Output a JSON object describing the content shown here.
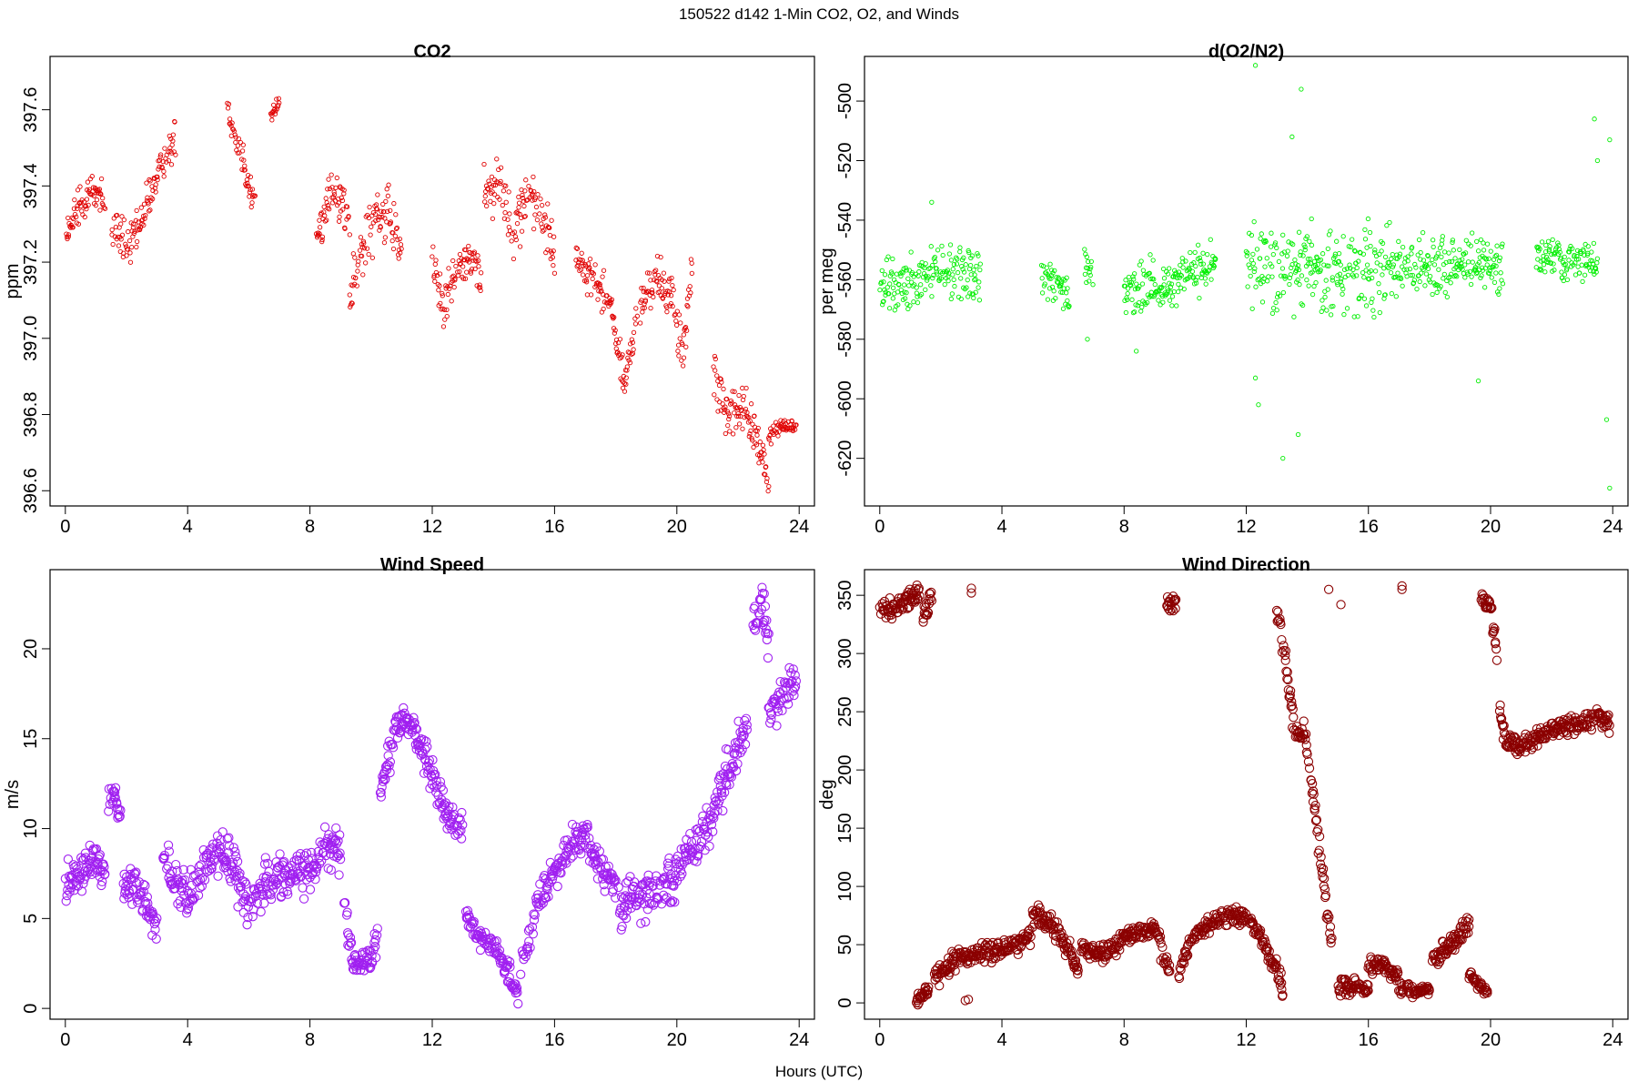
{
  "figure": {
    "title": "150522   d142   1-Min CO2, O2, and Winds",
    "xlabel": "Hours (UTC)"
  },
  "chart_data": [
    {
      "id": "co2",
      "type": "scatter",
      "title": "CO2",
      "ylabel": "ppm",
      "xlabel": "",
      "color": "#e00000",
      "xlim": [
        -0.5,
        24.5
      ],
      "ylim": [
        396.56,
        397.74
      ],
      "xticks": [
        0,
        4,
        8,
        12,
        16,
        20,
        24
      ],
      "yticks": [
        396.6,
        396.8,
        397.0,
        397.2,
        397.4,
        397.6
      ],
      "ytick_labels": [
        "396.6",
        "396.8",
        "397.0",
        "397.2",
        "397.4",
        "397.6"
      ],
      "marker_size": "small",
      "segments": [
        {
          "x": [
            0.0,
            0.5,
            1.0,
            1.3
          ],
          "y": [
            397.26,
            397.36,
            397.4,
            397.34
          ],
          "noise": 0.04
        },
        {
          "x": [
            1.5,
            2.0,
            2.5,
            3.0,
            3.6
          ],
          "y": [
            397.3,
            397.24,
            397.3,
            397.43,
            397.53
          ],
          "noise": 0.05
        },
        {
          "x": [
            5.3,
            5.6,
            5.8,
            6.0,
            6.2
          ],
          "y": [
            397.62,
            397.52,
            397.48,
            397.4,
            397.36
          ],
          "noise": 0.04
        },
        {
          "x": [
            6.7,
            7.0
          ],
          "y": [
            397.58,
            397.62
          ],
          "noise": 0.02
        },
        {
          "x": [
            8.2,
            8.6,
            9.0,
            9.3
          ],
          "y": [
            397.25,
            397.38,
            397.36,
            397.3
          ],
          "noise": 0.05
        },
        {
          "x": [
            9.3,
            9.8,
            10.2,
            10.6,
            11.0
          ],
          "y": [
            397.1,
            397.26,
            397.36,
            397.3,
            397.23
          ],
          "noise": 0.07
        },
        {
          "x": [
            12.0,
            12.4,
            12.8,
            13.2,
            13.6
          ],
          "y": [
            397.2,
            397.08,
            397.18,
            397.22,
            397.15
          ],
          "noise": 0.05
        },
        {
          "x": [
            13.7,
            14.2,
            14.6,
            15.2,
            15.8,
            16.0
          ],
          "y": [
            397.38,
            397.42,
            397.28,
            397.38,
            397.28,
            397.22
          ],
          "noise": 0.06
        },
        {
          "x": [
            16.7,
            17.2,
            17.8,
            18.3,
            18.7
          ],
          "y": [
            397.22,
            397.16,
            397.1,
            396.88,
            397.05
          ],
          "noise": 0.04
        },
        {
          "x": [
            18.8,
            19.3,
            19.8,
            20.2,
            20.5
          ],
          "y": [
            397.08,
            397.16,
            397.12,
            396.95,
            397.2
          ],
          "noise": 0.05
        },
        {
          "x": [
            21.2,
            21.7,
            22.2,
            22.7,
            23.0
          ],
          "y": [
            396.9,
            396.8,
            396.82,
            396.72,
            396.62
          ],
          "noise": 0.05
        },
        {
          "x": [
            23.0,
            23.4,
            23.9
          ],
          "y": [
            396.74,
            396.77,
            396.77
          ],
          "noise": 0.02
        }
      ]
    },
    {
      "id": "o2",
      "type": "scatter",
      "title": "d(O2/N2)",
      "ylabel": "per meg",
      "xlabel": "",
      "color": "#00ee00",
      "xlim": [
        -0.5,
        24.5
      ],
      "ylim": [
        -636,
        -485
      ],
      "xticks": [
        0,
        4,
        8,
        12,
        16,
        20,
        24
      ],
      "yticks": [
        -620,
        -600,
        -580,
        -560,
        -540,
        -520,
        -500
      ],
      "ytick_labels": [
        "-620",
        "-600",
        "-580",
        "-560",
        "-540",
        "-520",
        "-500"
      ],
      "marker_size": "small",
      "segments": [
        {
          "x": [
            0.0,
            0.5,
            1.0,
            1.5,
            2.0,
            2.5,
            3.3
          ],
          "y": [
            -563,
            -563,
            -560,
            -558,
            -556,
            -557,
            -560
          ],
          "noise": 8
        },
        {
          "x": [
            5.3,
            5.8,
            6.2
          ],
          "y": [
            -558,
            -562,
            -565
          ],
          "noise": 6
        },
        {
          "x": [
            6.7,
            7.0
          ],
          "y": [
            -558,
            -562
          ],
          "noise": 8
        },
        {
          "x": [
            8.0,
            8.6,
            9.2,
            9.8,
            10.4,
            11.0
          ],
          "y": [
            -565,
            -563,
            -562,
            -560,
            -558,
            -553
          ],
          "noise": 7
        },
        {
          "x": [
            12.0,
            12.8,
            13.6,
            14.4,
            15.2,
            16.0,
            16.8
          ],
          "y": [
            -556,
            -556,
            -557,
            -558,
            -557,
            -557,
            -556
          ],
          "noise": 12
        },
        {
          "x": [
            16.8,
            17.6,
            18.4,
            19.2,
            20.0,
            20.4
          ],
          "y": [
            -556,
            -556,
            -555,
            -554,
            -555,
            -556
          ],
          "noise": 8
        },
        {
          "x": [
            21.5,
            22.0,
            22.5,
            23.0,
            23.5
          ],
          "y": [
            -553,
            -552,
            -553,
            -552,
            -555
          ],
          "noise": 6
        }
      ],
      "outliers": [
        [
          12.3,
          -488
        ],
        [
          13.8,
          -496
        ],
        [
          13.5,
          -512
        ],
        [
          12.3,
          -593
        ],
        [
          12.4,
          -602
        ],
        [
          13.7,
          -612
        ],
        [
          13.2,
          -620
        ],
        [
          19.6,
          -594
        ],
        [
          23.8,
          -607
        ],
        [
          23.9,
          -630
        ],
        [
          23.4,
          -506
        ],
        [
          23.9,
          -513
        ],
        [
          1.7,
          -534
        ],
        [
          6.8,
          -580
        ],
        [
          8.4,
          -584
        ],
        [
          23.5,
          -520
        ]
      ]
    },
    {
      "id": "wind-speed",
      "type": "scatter",
      "title": "Wind Speed",
      "ylabel": "m/s",
      "xlabel": "",
      "color": "#a020f0",
      "xlim": [
        -0.5,
        24.5
      ],
      "ylim": [
        -0.6,
        24.4
      ],
      "xticks": [
        0,
        4,
        8,
        12,
        16,
        20,
        24
      ],
      "yticks": [
        0,
        5,
        10,
        15,
        20
      ],
      "ytick_labels": [
        "0",
        "5",
        "10",
        "15",
        "20"
      ],
      "marker_size": "large",
      "segments": [
        {
          "x": [
            0.0,
            0.5,
            1.0,
            1.3
          ],
          "y": [
            7.0,
            7.8,
            8.2,
            7.6
          ],
          "noise": 0.9
        },
        {
          "x": [
            1.4,
            1.6,
            1.8
          ],
          "y": [
            11.5,
            12.0,
            10.5
          ],
          "noise": 0.7
        },
        {
          "x": [
            1.9,
            2.5,
            3.0
          ],
          "y": [
            7.0,
            6.2,
            4.3
          ],
          "noise": 0.9
        },
        {
          "x": [
            3.2,
            3.6,
            4.0,
            4.5,
            5.0,
            5.5,
            6.0,
            6.5,
            7.0,
            7.5,
            8.0,
            8.5,
            9.0
          ],
          "y": [
            8.2,
            7.0,
            6.3,
            7.6,
            8.8,
            8.0,
            5.2,
            7.0,
            7.6,
            7.4,
            7.6,
            9.2,
            8.6
          ],
          "noise": 1.0
        },
        {
          "x": [
            9.1,
            9.4,
            9.7,
            10.0,
            10.2
          ],
          "y": [
            6.0,
            2.5,
            2.4,
            3.0,
            3.8
          ],
          "noise": 0.6
        },
        {
          "x": [
            10.3,
            10.8,
            11.2,
            11.8,
            12.5,
            13.0
          ],
          "y": [
            12.0,
            15.5,
            16.2,
            13.8,
            10.8,
            10.0
          ],
          "noise": 0.8
        },
        {
          "x": [
            13.1,
            13.5,
            14.0,
            14.5,
            14.8
          ],
          "y": [
            5.2,
            4.0,
            3.5,
            2.0,
            0.7
          ],
          "noise": 0.5
        },
        {
          "x": [
            14.9,
            15.5,
            16.0,
            16.5,
            17.0,
            17.5,
            18.0
          ],
          "y": [
            2.5,
            6.2,
            7.5,
            9.0,
            9.6,
            7.8,
            6.8
          ],
          "noise": 0.8
        },
        {
          "x": [
            18.1,
            18.6,
            19.2,
            19.8,
            20.3,
            20.8,
            21.3,
            21.8,
            22.3
          ],
          "y": [
            5.3,
            6.3,
            6.4,
            6.8,
            8.5,
            9.5,
            11.5,
            13.5,
            15.5
          ],
          "noise": 1.1
        },
        {
          "x": [
            22.5,
            22.8,
            23.0
          ],
          "y": [
            21.5,
            22.5,
            20.5
          ],
          "noise": 1.0
        },
        {
          "x": [
            23.0,
            23.5,
            23.9
          ],
          "y": [
            16.2,
            17.6,
            18.0
          ],
          "noise": 1.1
        }
      ]
    },
    {
      "id": "wind-direction",
      "type": "scatter",
      "title": "Wind Direction",
      "ylabel": "deg",
      "xlabel": "",
      "color": "#8b0000",
      "xlim": [
        -0.5,
        24.5
      ],
      "ylim": [
        -14,
        372
      ],
      "xticks": [
        0,
        4,
        8,
        12,
        16,
        20,
        24
      ],
      "yticks": [
        0,
        50,
        100,
        150,
        200,
        250,
        300,
        350
      ],
      "ytick_labels": [
        "0",
        "50",
        "100",
        "150",
        "200",
        "250",
        "300",
        "350"
      ],
      "marker_size": "large",
      "segments": [
        {
          "x": [
            0.0,
            0.5,
            1.0,
            1.3
          ],
          "y": [
            336,
            340,
            348,
            355
          ],
          "noise": 7
        },
        {
          "x": [
            1.4,
            1.7
          ],
          "y": [
            330,
            350
          ],
          "noise": 10
        },
        {
          "x": [
            1.2,
            1.6
          ],
          "y": [
            3,
            12
          ],
          "noise": 5
        },
        {
          "x": [
            1.8,
            2.5,
            3.0,
            3.5,
            4.0,
            4.5,
            5.0
          ],
          "y": [
            22,
            38,
            40,
            45,
            45,
            50,
            60
          ],
          "noise": 7
        },
        {
          "x": [
            5.0,
            5.5,
            6.0,
            6.5
          ],
          "y": [
            78,
            72,
            55,
            30
          ],
          "noise": 9
        },
        {
          "x": [
            6.6,
            7.0,
            7.5,
            8.0,
            8.5,
            9.0,
            9.2
          ],
          "y": [
            50,
            40,
            45,
            55,
            62,
            62,
            55
          ],
          "noise": 6
        },
        {
          "x": [
            9.2,
            9.5
          ],
          "y": [
            40,
            30
          ],
          "noise": 8
        },
        {
          "x": [
            9.4,
            9.7
          ],
          "y": [
            338,
            348
          ],
          "noise": 8
        },
        {
          "x": [
            9.8,
            10.2,
            10.8,
            11.5,
            12.0,
            12.5,
            13.0,
            13.2
          ],
          "y": [
            25,
            55,
            68,
            75,
            72,
            55,
            30,
            10
          ],
          "noise": 6
        },
        {
          "x": [
            13.0,
            13.3,
            13.6,
            13.9,
            14.2,
            14.5,
            14.8
          ],
          "y": [
            338,
            290,
            230,
            235,
            180,
            110,
            50
          ],
          "noise": 10
        },
        {
          "x": [
            15.0,
            15.5,
            16.0
          ],
          "y": [
            15,
            15,
            10
          ],
          "noise": 6
        },
        {
          "x": [
            16.0,
            16.5,
            17.0
          ],
          "y": [
            30,
            35,
            20
          ],
          "noise": 6
        },
        {
          "x": [
            17.0,
            17.5,
            18.0
          ],
          "y": [
            12,
            10,
            10
          ],
          "noise": 5
        },
        {
          "x": [
            18.1,
            18.5,
            19.0,
            19.3
          ],
          "y": [
            35,
            45,
            58,
            70
          ],
          "noise": 8
        },
        {
          "x": [
            19.3,
            19.6,
            19.9
          ],
          "y": [
            25,
            15,
            8
          ],
          "noise": 5
        },
        {
          "x": [
            19.7,
            20.0,
            20.2
          ],
          "y": [
            350,
            340,
            300
          ],
          "noise": 10
        },
        {
          "x": [
            20.3,
            20.5,
            21.0,
            21.5,
            22.0,
            22.5,
            23.0,
            23.5,
            23.9
          ],
          "y": [
            250,
            225,
            220,
            228,
            235,
            238,
            242,
            245,
            240
          ],
          "noise": 7
        }
      ],
      "outliers": [
        [
          3.0,
          356
        ],
        [
          3.0,
          352
        ],
        [
          14.7,
          355
        ],
        [
          15.1,
          342
        ],
        [
          17.1,
          358
        ],
        [
          17.1,
          355
        ],
        [
          2.8,
          2
        ],
        [
          2.9,
          3
        ]
      ]
    }
  ]
}
